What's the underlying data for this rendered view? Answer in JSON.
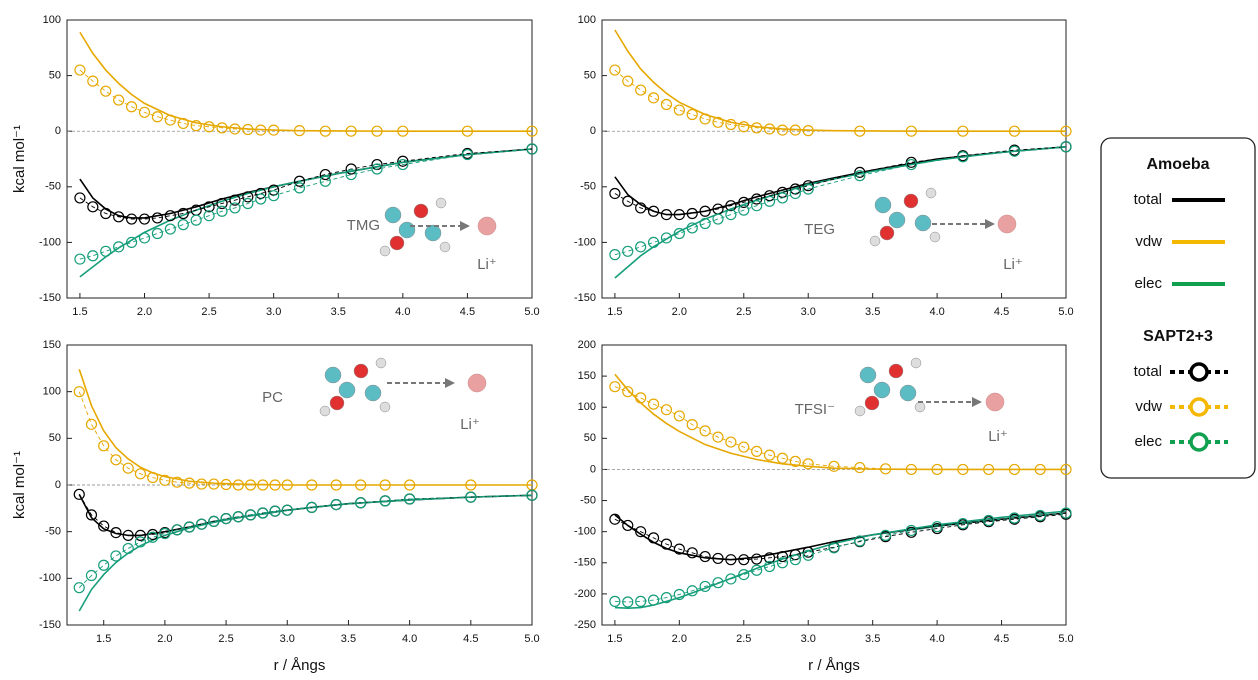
{
  "chart_data": [
    {
      "type": "line",
      "molecule": "TMG",
      "ion": "Li⁺",
      "ylabel": "kcal mol⁻¹",
      "zero_line": true,
      "xlim": [
        1.4,
        5.0
      ],
      "ylim": [
        -150,
        100
      ],
      "xticks": [
        1.5,
        {
          "value": 2,
          "label": "2.0"
        },
        2.5,
        {
          "value": 3,
          "label": "3.0"
        },
        3.5,
        {
          "value": 4,
          "label": "4.0"
        },
        4.5,
        {
          "value": 5,
          "label": "5.0"
        }
      ],
      "yticks": [
        -150,
        -100,
        -50,
        0,
        50,
        100
      ],
      "x_line": [
        1.5,
        1.6,
        1.7,
        1.8,
        1.9,
        2.0,
        2.2,
        2.4,
        2.6,
        2.8,
        3.0,
        3.2,
        3.5,
        4.0,
        4.5,
        5.0
      ],
      "x_points": [
        1.5,
        1.6,
        1.7,
        1.8,
        1.9,
        2.0,
        2.1,
        2.2,
        2.3,
        2.4,
        2.5,
        2.6,
        2.7,
        2.8,
        2.9,
        3.0,
        3.2,
        3.4,
        3.6,
        3.8,
        4.0,
        4.5,
        5.0
      ],
      "series": [
        {
          "style": "line",
          "color": "#e6a800",
          "values": [
            89,
            70,
            55,
            43,
            33,
            25,
            14,
            7.5,
            4,
            2,
            1,
            0.5,
            0.2,
            0,
            0,
            0
          ]
        },
        {
          "style": "line",
          "color": "#000000",
          "values": [
            -43,
            -60,
            -70,
            -76,
            -78,
            -78,
            -74,
            -68,
            -61,
            -55,
            -50,
            -45,
            -38,
            -28,
            -21,
            -16
          ]
        },
        {
          "style": "line",
          "color": "#169e7a",
          "values": [
            -131,
            -122,
            -113,
            -105,
            -98,
            -91,
            -80,
            -71,
            -63,
            -56,
            -50,
            -45,
            -38,
            -28,
            -21,
            -16
          ]
        },
        {
          "style": "points",
          "color": "#e6a800",
          "values": [
            55,
            45,
            36,
            28,
            22,
            17,
            13,
            10,
            7,
            5,
            4,
            3,
            2,
            1.5,
            1,
            1,
            0.5,
            0,
            0,
            0,
            0,
            0,
            0
          ]
        },
        {
          "style": "points",
          "color": "#000000",
          "values": [
            -60,
            -68,
            -74,
            -77,
            -79,
            -79,
            -78,
            -76,
            -74,
            -71,
            -68,
            -65,
            -62,
            -59,
            -56,
            -53,
            -45,
            -39,
            -34,
            -30,
            -27,
            -20,
            -16
          ]
        },
        {
          "style": "points",
          "color": "#169e7a",
          "values": [
            -115,
            -112,
            -108,
            -104,
            -100,
            -96,
            -92,
            -88,
            -84,
            -80,
            -76,
            -72,
            -69,
            -65,
            -61,
            -58,
            -51,
            -45,
            -39,
            -34,
            -30,
            -21,
            -16
          ]
        }
      ]
    },
    {
      "type": "line",
      "molecule": "TEG",
      "ion": "Li⁺",
      "zero_line": true,
      "xlim": [
        1.4,
        5.0
      ],
      "ylim": [
        -150,
        100
      ],
      "xticks": [
        1.5,
        {
          "value": 2,
          "label": "2.0"
        },
        2.5,
        {
          "value": 3,
          "label": "3.0"
        },
        3.5,
        {
          "value": 4,
          "label": "4.0"
        },
        4.5,
        {
          "value": 5,
          "label": "5.0"
        }
      ],
      "yticks": [
        -150,
        -100,
        -50,
        0,
        50,
        100
      ],
      "x_line": [
        1.5,
        1.6,
        1.7,
        1.8,
        1.9,
        2.0,
        2.2,
        2.4,
        2.6,
        2.8,
        3.0,
        3.2,
        3.5,
        4.0,
        4.5,
        5.0
      ],
      "x_points": [
        1.5,
        1.6,
        1.7,
        1.8,
        1.9,
        2.0,
        2.1,
        2.2,
        2.3,
        2.4,
        2.5,
        2.6,
        2.7,
        2.8,
        2.9,
        3.0,
        3.4,
        3.8,
        4.2,
        4.6,
        5.0
      ],
      "series": [
        {
          "style": "line",
          "color": "#e6a800",
          "values": [
            91,
            72,
            56,
            44,
            34,
            26,
            15,
            8,
            4,
            2,
            1,
            0.5,
            0.2,
            0,
            0,
            0
          ]
        },
        {
          "style": "line",
          "color": "#000000",
          "values": [
            -41,
            -57,
            -66,
            -72,
            -75,
            -75,
            -72,
            -66,
            -59,
            -53,
            -47,
            -42,
            -35,
            -25,
            -19,
            -14
          ]
        },
        {
          "style": "line",
          "color": "#169e7a",
          "values": [
            -132,
            -122,
            -112,
            -104,
            -97,
            -90,
            -79,
            -70,
            -62,
            -55,
            -48,
            -43,
            -36,
            -26,
            -19,
            -14
          ]
        },
        {
          "style": "points",
          "color": "#e6a800",
          "values": [
            55,
            45,
            37,
            30,
            24,
            19,
            15,
            11,
            8,
            6,
            4,
            3,
            2,
            1,
            1,
            0.5,
            0,
            0,
            0,
            0,
            0
          ]
        },
        {
          "style": "points",
          "color": "#000000",
          "values": [
            -56,
            -63,
            -69,
            -72,
            -75,
            -75,
            -74,
            -72,
            -70,
            -67,
            -64,
            -61,
            -58,
            -55,
            -52,
            -49,
            -37,
            -28,
            -22,
            -17,
            -14
          ]
        },
        {
          "style": "points",
          "color": "#169e7a",
          "values": [
            -111,
            -108,
            -104,
            -100,
            -96,
            -92,
            -87,
            -83,
            -79,
            -75,
            -71,
            -67,
            -63,
            -60,
            -56,
            -52,
            -40,
            -30,
            -23,
            -18,
            -14
          ]
        }
      ]
    },
    {
      "type": "line",
      "molecule": "PC",
      "ion": "Li⁺",
      "ylabel": "kcal mol⁻¹",
      "xlabel": "r / Ångs",
      "zero_line": true,
      "xlim": [
        1.2,
        5.0
      ],
      "ylim": [
        -150,
        150
      ],
      "xticks": [
        1.5,
        {
          "value": 2,
          "label": "2.0"
        },
        2.5,
        {
          "value": 3,
          "label": "3.0"
        },
        3.5,
        {
          "value": 4,
          "label": "4.0"
        },
        4.5,
        {
          "value": 5,
          "label": "5.0"
        }
      ],
      "yticks": [
        -150,
        -100,
        -50,
        0,
        50,
        100,
        150
      ],
      "x_line": [
        1.3,
        1.4,
        1.5,
        1.6,
        1.7,
        1.8,
        1.9,
        2.0,
        2.2,
        2.4,
        2.6,
        2.8,
        3.0,
        3.2,
        3.5,
        4.0,
        4.5,
        5.0
      ],
      "x_points": [
        1.3,
        1.4,
        1.5,
        1.6,
        1.7,
        1.8,
        1.9,
        2.0,
        2.1,
        2.2,
        2.3,
        2.4,
        2.5,
        2.6,
        2.7,
        2.8,
        2.9,
        3.0,
        3.2,
        3.4,
        3.6,
        3.8,
        4.0,
        4.5,
        5.0
      ],
      "series": [
        {
          "style": "line",
          "color": "#e6a800",
          "values": [
            124,
            85,
            58,
            40,
            28,
            19,
            13,
            9,
            4,
            2,
            1,
            0.5,
            0,
            0,
            0,
            0,
            0,
            0
          ]
        },
        {
          "style": "line",
          "color": "#000000",
          "values": [
            -10,
            -35,
            -47,
            -52,
            -54,
            -54,
            -52,
            -50,
            -45,
            -39,
            -35,
            -31,
            -27,
            -24,
            -20,
            -16,
            -13,
            -11
          ]
        },
        {
          "style": "line",
          "color": "#169e7a",
          "values": [
            -135,
            -112,
            -96,
            -83,
            -73,
            -65,
            -59,
            -54,
            -46,
            -40,
            -35,
            -31,
            -27,
            -24,
            -20,
            -16,
            -13,
            -11
          ]
        },
        {
          "style": "points",
          "color": "#e6a800",
          "values": [
            100,
            65,
            42,
            27,
            18,
            12,
            8,
            5,
            3,
            2,
            1,
            1,
            0.5,
            0,
            0,
            0,
            0,
            0,
            0,
            0,
            0,
            0,
            0,
            0,
            0
          ]
        },
        {
          "style": "points",
          "color": "#000000",
          "values": [
            -10,
            -32,
            -44,
            -51,
            -54,
            -54,
            -53,
            -51,
            -48,
            -45,
            -42,
            -39,
            -36,
            -34,
            -32,
            -30,
            -28,
            -27,
            -24,
            -21,
            -19,
            -17,
            -15,
            -13,
            -11
          ]
        },
        {
          "style": "points",
          "color": "#169e7a",
          "values": [
            -110,
            -97,
            -86,
            -76,
            -68,
            -61,
            -56,
            -52,
            -48,
            -45,
            -42,
            -39,
            -36,
            -34,
            -32,
            -30,
            -28,
            -27,
            -24,
            -21,
            -19,
            -17,
            -15,
            -13,
            -11
          ]
        }
      ]
    },
    {
      "type": "line",
      "molecule": "TFSI⁻",
      "ion": "Li⁺",
      "xlabel": "r / Ångs",
      "zero_line": true,
      "xlim": [
        1.4,
        5.0
      ],
      "ylim": [
        -250,
        200
      ],
      "xticks": [
        1.5,
        {
          "value": 2,
          "label": "2.0"
        },
        2.5,
        {
          "value": 3,
          "label": "3.0"
        },
        3.5,
        {
          "value": 4,
          "label": "4.0"
        },
        4.5,
        {
          "value": 5,
          "label": "5.0"
        }
      ],
      "yticks": [
        -250,
        -200,
        -150,
        -100,
        -50,
        0,
        50,
        100,
        150,
        200
      ],
      "x_line": [
        1.5,
        1.6,
        1.7,
        1.8,
        1.9,
        2.0,
        2.2,
        2.4,
        2.6,
        2.8,
        3.0,
        3.2,
        3.5,
        4.0,
        4.5,
        5.0
      ],
      "x_points": [
        1.5,
        1.6,
        1.7,
        1.8,
        1.9,
        2.0,
        2.1,
        2.2,
        2.3,
        2.4,
        2.5,
        2.6,
        2.7,
        2.8,
        2.9,
        3.0,
        3.2,
        3.4,
        3.6,
        3.8,
        4.0,
        4.2,
        4.4,
        4.6,
        4.8,
        5.0
      ],
      "series": [
        {
          "style": "line",
          "color": "#e6a800",
          "values": [
            153,
            128,
            107,
            89,
            74,
            61,
            40,
            26,
            16,
            9,
            5,
            2,
            0.5,
            0,
            0,
            0
          ]
        },
        {
          "style": "line",
          "color": "#000000",
          "values": [
            -73,
            -90,
            -104,
            -117,
            -127,
            -134,
            -142,
            -145,
            -141,
            -133,
            -125,
            -116,
            -105,
            -91,
            -80,
            -70
          ]
        },
        {
          "style": "line",
          "color": "#169e7a",
          "values": [
            -222,
            -223,
            -222,
            -218,
            -212,
            -206,
            -191,
            -175,
            -159,
            -144,
            -131,
            -119,
            -105,
            -89,
            -77,
            -67
          ]
        },
        {
          "style": "points",
          "color": "#e6a800",
          "values": [
            133,
            125,
            115,
            105,
            96,
            86,
            72,
            62,
            52,
            44,
            36,
            29,
            23,
            18,
            13,
            9,
            5,
            3,
            1,
            0,
            0,
            0,
            0,
            0,
            0,
            0
          ]
        },
        {
          "style": "points",
          "color": "#000000",
          "values": [
            -80,
            -90,
            -100,
            -110,
            -120,
            -128,
            -134,
            -140,
            -143,
            -145,
            -145,
            -144,
            -142,
            -140,
            -137,
            -133,
            -125,
            -116,
            -108,
            -101,
            -95,
            -89,
            -84,
            -80,
            -76,
            -72
          ]
        },
        {
          "style": "points",
          "color": "#169e7a",
          "values": [
            -212,
            -213,
            -212,
            -210,
            -206,
            -201,
            -195,
            -188,
            -182,
            -176,
            -169,
            -162,
            -156,
            -150,
            -145,
            -138,
            -126,
            -115,
            -106,
            -98,
            -92,
            -87,
            -82,
            -78,
            -74,
            -70
          ]
        }
      ]
    }
  ],
  "legend": {
    "groups": [
      {
        "title": "Amoeba",
        "style": "line",
        "entries": [
          {
            "name": "total",
            "color": "#000000"
          },
          {
            "name": "vdw",
            "color": "#f5b800"
          },
          {
            "name": "elec",
            "color": "#10a050"
          }
        ]
      },
      {
        "title": "SAPT2+3",
        "style": "points",
        "entries": [
          {
            "name": "total",
            "color": "#000000"
          },
          {
            "name": "vdw",
            "color": "#f5b800"
          },
          {
            "name": "elec",
            "color": "#10a050"
          }
        ]
      }
    ]
  }
}
